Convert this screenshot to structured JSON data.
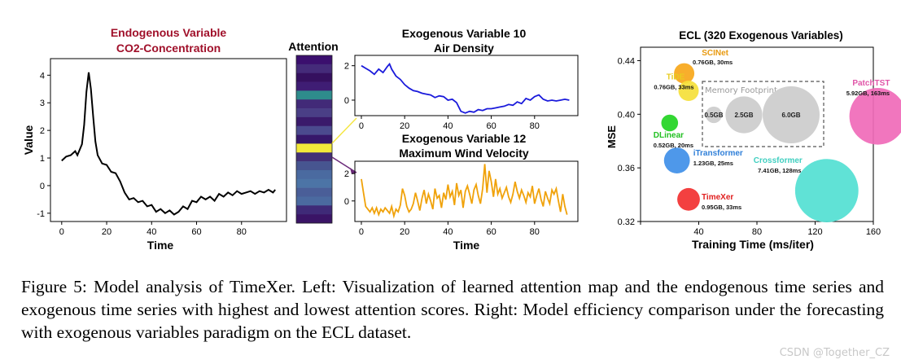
{
  "figure": {
    "caption": "Figure 5: Model analysis of TimeXer. Left: Visualization of learned attention map and the endogenous time series and exogenous time series with highest and lowest attention scores. Right: Model efficiency comparison under the forecasting with exogenous variables paradigm on the ECL dataset.",
    "watermark": "CSDN @Together_CZ",
    "colors": {
      "endo_title": "#a0102a",
      "endo_line": "#000000",
      "exo10_line": "#1a1adb",
      "exo12_line": "#f0a20a",
      "highlight": "#f5e642"
    }
  },
  "chart_data": [
    {
      "type": "line",
      "title_line1": "Endogenous Variable",
      "title_line2": "CO2-Concentration",
      "xlabel": "Time",
      "ylabel": "Value",
      "xlim": [
        -5,
        100
      ],
      "ylim": [
        -1.3,
        4.6
      ],
      "xticks": [
        0,
        20,
        40,
        60,
        80
      ],
      "yticks": [
        -1,
        0,
        1,
        2,
        3,
        4
      ],
      "x": [
        0,
        2,
        4,
        6,
        7,
        8,
        9,
        10,
        11,
        12,
        13,
        14,
        15,
        16,
        18,
        20,
        22,
        24,
        26,
        28,
        30,
        32,
        34,
        36,
        38,
        40,
        42,
        44,
        46,
        48,
        50,
        52,
        54,
        56,
        58,
        60,
        62,
        64,
        66,
        68,
        70,
        72,
        74,
        76,
        78,
        80,
        82,
        84,
        86,
        88,
        90,
        92,
        94,
        95
      ],
      "y": [
        0.9,
        1.05,
        1.1,
        1.25,
        1.1,
        1.3,
        1.5,
        2.2,
        3.4,
        4.1,
        3.5,
        2.5,
        1.6,
        1.1,
        0.8,
        0.75,
        0.5,
        0.45,
        0.15,
        -0.25,
        -0.5,
        -0.45,
        -0.6,
        -0.55,
        -0.75,
        -0.7,
        -0.95,
        -0.85,
        -1.0,
        -0.9,
        -1.05,
        -0.95,
        -0.75,
        -0.85,
        -0.55,
        -0.6,
        -0.4,
        -0.5,
        -0.4,
        -0.55,
        -0.3,
        -0.4,
        -0.25,
        -0.35,
        -0.2,
        -0.3,
        -0.25,
        -0.2,
        -0.3,
        -0.2,
        -0.25,
        -0.15,
        -0.25,
        -0.15
      ]
    },
    {
      "type": "heatmap",
      "title": "Attention",
      "values": [
        0.05,
        0.12,
        0.02,
        0.08,
        0.45,
        0.1,
        0.15,
        0.06,
        0.2,
        0.04,
        1.0,
        0.1,
        0.18,
        0.3,
        0.35,
        0.25,
        0.3,
        0.1,
        0.05
      ],
      "colors": [
        "#3b0f6e",
        "#452b7a",
        "#35105f",
        "#3f1d74",
        "#2e8c8c",
        "#422a78",
        "#4a3f86",
        "#3a1a6b",
        "#4b4a8e",
        "#36176a",
        "#f3e83a",
        "#433076",
        "#475590",
        "#4a6aa0",
        "#4c74a6",
        "#4a5e98",
        "#4b6aa0",
        "#3f2a78",
        "#3a1466"
      ]
    },
    {
      "type": "line",
      "title_line1": "Exogenous Variable 10",
      "title_line2": "Air Density",
      "xlabel": "",
      "xlim": [
        -3,
        100
      ],
      "ylim": [
        -0.9,
        2.6
      ],
      "xticks": [
        0,
        20,
        40,
        60,
        80
      ],
      "yticks": [
        0,
        2
      ],
      "x": [
        0,
        2,
        4,
        6,
        8,
        10,
        12,
        13,
        14,
        16,
        18,
        20,
        22,
        24,
        26,
        28,
        30,
        32,
        34,
        36,
        38,
        40,
        42,
        44,
        46,
        48,
        50,
        52,
        54,
        56,
        58,
        60,
        62,
        64,
        66,
        68,
        70,
        72,
        74,
        76,
        78,
        80,
        82,
        84,
        86,
        88,
        90,
        92,
        94,
        96
      ],
      "y": [
        2.0,
        1.85,
        1.7,
        1.5,
        1.8,
        1.6,
        1.95,
        2.1,
        1.8,
        1.4,
        1.2,
        0.9,
        0.7,
        0.55,
        0.5,
        0.4,
        0.35,
        0.3,
        0.15,
        0.25,
        0.2,
        0.0,
        0.05,
        -0.15,
        -0.65,
        -0.75,
        -0.65,
        -0.7,
        -0.55,
        -0.6,
        -0.5,
        -0.5,
        -0.45,
        -0.4,
        -0.35,
        -0.25,
        -0.3,
        -0.1,
        -0.2,
        0.1,
        0.0,
        0.2,
        0.3,
        0.05,
        -0.05,
        0.0,
        -0.05,
        0.0,
        0.05,
        0.0
      ]
    },
    {
      "type": "line",
      "title_line1": "Exogenous Variable 12",
      "title_line2": "Maximum Wind Velocity",
      "xlabel": "Time",
      "xlim": [
        -3,
        100
      ],
      "ylim": [
        -1.5,
        2.9
      ],
      "xticks": [
        0,
        20,
        40,
        60,
        80
      ],
      "yticks": [
        0,
        2
      ],
      "x": [
        0,
        1,
        2,
        3,
        4,
        5,
        6,
        7,
        8,
        9,
        10,
        11,
        12,
        13,
        14,
        15,
        16,
        17,
        18,
        19,
        20,
        21,
        22,
        23,
        24,
        25,
        26,
        27,
        28,
        29,
        30,
        31,
        32,
        33,
        34,
        35,
        36,
        37,
        38,
        39,
        40,
        41,
        42,
        43,
        44,
        45,
        46,
        47,
        48,
        49,
        50,
        51,
        52,
        53,
        54,
        55,
        56,
        57,
        58,
        59,
        60,
        61,
        62,
        63,
        64,
        65,
        66,
        67,
        68,
        69,
        70,
        71,
        72,
        73,
        74,
        75,
        76,
        77,
        78,
        79,
        80,
        81,
        82,
        83,
        84,
        85,
        86,
        87,
        88,
        89,
        90,
        91,
        92,
        93,
        94,
        95
      ],
      "y": [
        1.6,
        0.6,
        -0.4,
        -0.6,
        -0.8,
        -0.5,
        -0.9,
        -0.5,
        -1.0,
        -0.6,
        -0.8,
        -0.5,
        -0.7,
        -0.9,
        -0.4,
        -1.1,
        -0.6,
        -0.8,
        -0.3,
        0.9,
        0.4,
        -0.4,
        -0.8,
        -0.6,
        -0.2,
        0.6,
        0.0,
        -0.7,
        0.2,
        0.8,
        -0.2,
        0.5,
        0.0,
        -0.6,
        0.9,
        0.2,
        0.4,
        -0.5,
        0.6,
        0.1,
        1.2,
        0.3,
        0.7,
        -0.3,
        1.3,
        0.4,
        0.8,
        -0.5,
        0.7,
        1.1,
        0.5,
        -0.2,
        0.8,
        1.2,
        0.4,
        -0.2,
        0.9,
        2.7,
        0.6,
        2.2,
        1.4,
        0.3,
        1.6,
        0.5,
        0.9,
        0.2,
        0.6,
        1.0,
        0.3,
        -0.1,
        0.5,
        1.4,
        0.7,
        0.2,
        0.8,
        0.4,
        -0.1,
        0.6,
        0.3,
        1.1,
        -0.2,
        0.4,
        0.9,
        0.1,
        -0.4,
        0.7,
        0.2,
        -0.2,
        0.8,
        0.5,
        0.9,
        0.0,
        -0.8,
        0.5,
        -0.4,
        -1.0
      ]
    },
    {
      "type": "scatter",
      "title": "ECL (320 Exogenous Variables)",
      "xlabel": "Training Time (ms/iter)",
      "ylabel": "MSE",
      "xlim": [
        0,
        160
      ],
      "ylim": [
        0.32,
        0.45
      ],
      "xtick_labels": [
        "",
        "40",
        "80",
        "120",
        "160"
      ],
      "xticks": [
        0,
        40,
        80,
        120,
        160
      ],
      "yticks": [
        0.32,
        0.36,
        0.4,
        0.44
      ],
      "ytick_labels": [
        "0.32",
        "0.36",
        "0.40",
        "0.44"
      ],
      "points": [
        {
          "name": "SCINet",
          "mem": "0.76GB, 30ms",
          "x": 30,
          "y": 0.4305,
          "color": "#f7a71a",
          "size": 0.76
        },
        {
          "name": "TiDE",
          "mem": "0.76GB, 33ms",
          "x": 33,
          "y": 0.4175,
          "color": "#f5e03a",
          "size": 0.76
        },
        {
          "name": "DLinear",
          "mem": "0.52GB, 20ms",
          "x": 20,
          "y": 0.3935,
          "color": "#22d422",
          "size": 0.52
        },
        {
          "name": "iTransformer",
          "mem": "1.23GB, 25ms",
          "x": 25,
          "y": 0.3655,
          "color": "#3f8fe8",
          "size": 1.23
        },
        {
          "name": "Crossformer",
          "mem": "7.41GB, 128ms",
          "x": 128,
          "y": 0.343,
          "color": "#52e0d2",
          "size": 7.41
        },
        {
          "name": "TimeXer",
          "mem": "0.95GB, 33ms",
          "x": 33,
          "y": 0.3365,
          "color": "#f23030",
          "size": 0.95
        },
        {
          "name": "PatchTST",
          "mem": "5.92GB, 163ms",
          "x": 163,
          "y": 0.3985,
          "color": "#f06ab8",
          "size": 5.92
        }
      ],
      "memory_footprint": {
        "title": "Memory Footprint",
        "items": [
          {
            "label": "0.5GB",
            "size": 0.5
          },
          {
            "label": "2.5GB",
            "size": 2.5
          },
          {
            "label": "6.0GB",
            "size": 6.0
          }
        ]
      }
    }
  ]
}
